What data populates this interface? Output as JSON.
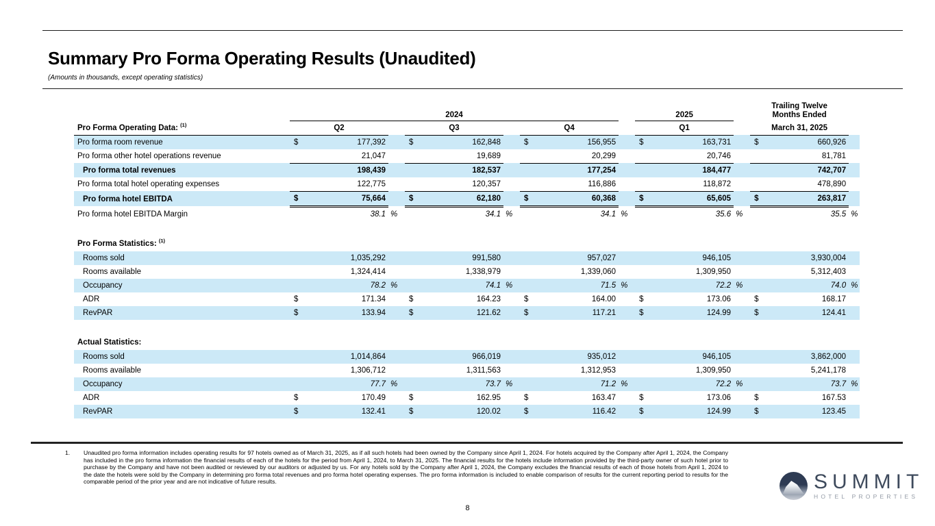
{
  "page": {
    "title": "Summary Pro Forma Operating Results (Unaudited)",
    "subtitle": "(Amounts in thousands, except operating statistics)",
    "page_number": "8"
  },
  "colors": {
    "row_highlight": "#cce9f7",
    "logo_navy": "#2e3b53",
    "logo_text_navy": "#3e4a5c",
    "logo_text_gray": "#939aa5"
  },
  "table": {
    "header": {
      "year_2024": "2024",
      "year_2025": "2025",
      "ttm_line1": "Trailing Twelve",
      "ttm_line2": "Months Ended",
      "label_heading": "Pro Forma Operating Data:",
      "label_heading_sup": "(1)",
      "quarter_labels": [
        "Q2",
        "Q3",
        "Q4",
        "Q1"
      ],
      "ttm_col_label": "March 31, 2025"
    },
    "sections": [
      {
        "heading": null,
        "heading_sup": "",
        "rows": [
          {
            "label": "Pro forma room revenue",
            "indent": 0,
            "bold": false,
            "italic": false,
            "shaded": true,
            "unit": "dollar",
            "bottom_border": "none",
            "values": [
              "177,392",
              "162,848",
              "156,955",
              "163,731",
              "660,926"
            ]
          },
          {
            "label": "Pro forma other hotel operations revenue",
            "indent": 0,
            "bold": false,
            "italic": false,
            "shaded": false,
            "unit": "none",
            "bottom_border": "single",
            "values": [
              "21,047",
              "19,689",
              "20,299",
              "20,746",
              "81,781"
            ]
          },
          {
            "label": "Pro forma total revenues",
            "indent": 1,
            "bold": true,
            "italic": false,
            "shaded": true,
            "unit": "none",
            "bottom_border": "none",
            "values": [
              "198,439",
              "182,537",
              "177,254",
              "184,477",
              "742,707"
            ]
          },
          {
            "label": "Pro forma total hotel operating expenses",
            "indent": 0,
            "bold": false,
            "italic": false,
            "shaded": false,
            "unit": "none",
            "bottom_border": "single",
            "values": [
              "122,775",
              "120,357",
              "116,886",
              "118,872",
              "478,890"
            ]
          },
          {
            "label": "Pro forma hotel EBITDA",
            "indent": 1,
            "bold": true,
            "italic": false,
            "shaded": true,
            "unit": "dollar",
            "bottom_border": "double",
            "values": [
              "75,664",
              "62,180",
              "60,368",
              "65,605",
              "263,817"
            ]
          },
          {
            "label": "Pro forma hotel EBITDA Margin",
            "indent": 0,
            "bold": false,
            "italic": true,
            "shaded": false,
            "unit": "percent",
            "bottom_border": "none",
            "values": [
              "38.1",
              "34.1",
              "34.1",
              "35.6",
              "35.5"
            ]
          }
        ]
      },
      {
        "heading": "Pro Forma Statistics:",
        "heading_sup": "(1)",
        "rows": [
          {
            "label": "Rooms sold",
            "indent": 1,
            "bold": false,
            "italic": false,
            "shaded": true,
            "unit": "none",
            "bottom_border": "none",
            "values": [
              "1,035,292",
              "991,580",
              "957,027",
              "946,105",
              "3,930,004"
            ]
          },
          {
            "label": "Rooms available",
            "indent": 1,
            "bold": false,
            "italic": false,
            "shaded": false,
            "unit": "none",
            "bottom_border": "none",
            "values": [
              "1,324,414",
              "1,338,979",
              "1,339,060",
              "1,309,950",
              "5,312,403"
            ]
          },
          {
            "label": "Occupancy",
            "indent": 1,
            "bold": false,
            "italic": true,
            "shaded": true,
            "unit": "percent",
            "bottom_border": "none",
            "values": [
              "78.2",
              "74.1",
              "71.5",
              "72.2",
              "74.0"
            ]
          },
          {
            "label": "ADR",
            "indent": 1,
            "bold": false,
            "italic": false,
            "shaded": false,
            "unit": "dollar",
            "bottom_border": "none",
            "values": [
              "171.34",
              "164.23",
              "164.00",
              "173.06",
              "168.17"
            ]
          },
          {
            "label": "RevPAR",
            "indent": 1,
            "bold": false,
            "italic": false,
            "shaded": true,
            "unit": "dollar",
            "bottom_border": "none",
            "values": [
              "133.94",
              "121.62",
              "117.21",
              "124.99",
              "124.41"
            ]
          }
        ]
      },
      {
        "heading": "Actual Statistics:",
        "heading_sup": "",
        "rows": [
          {
            "label": "Rooms sold",
            "indent": 1,
            "bold": false,
            "italic": false,
            "shaded": true,
            "unit": "none",
            "bottom_border": "none",
            "values": [
              "1,014,864",
              "966,019",
              "935,012",
              "946,105",
              "3,862,000"
            ]
          },
          {
            "label": "Rooms available",
            "indent": 1,
            "bold": false,
            "italic": false,
            "shaded": false,
            "unit": "none",
            "bottom_border": "none",
            "values": [
              "1,306,712",
              "1,311,563",
              "1,312,953",
              "1,309,950",
              "5,241,178"
            ]
          },
          {
            "label": "Occupancy",
            "indent": 1,
            "bold": false,
            "italic": true,
            "shaded": true,
            "unit": "percent",
            "bottom_border": "none",
            "values": [
              "77.7",
              "73.7",
              "71.2",
              "72.2",
              "73.7"
            ]
          },
          {
            "label": "ADR",
            "indent": 1,
            "bold": false,
            "italic": false,
            "shaded": false,
            "unit": "dollar",
            "bottom_border": "none",
            "values": [
              "170.49",
              "162.95",
              "163.47",
              "173.06",
              "167.53"
            ]
          },
          {
            "label": "RevPAR",
            "indent": 1,
            "bold": false,
            "italic": false,
            "shaded": true,
            "unit": "dollar",
            "bottom_border": "none",
            "values": [
              "132.41",
              "120.02",
              "116.42",
              "124.99",
              "123.45"
            ]
          }
        ]
      }
    ]
  },
  "footnote": {
    "number": "1.",
    "text": "Unaudited pro forma information includes operating results for 97 hotels owned as of March 31, 2025, as if all such hotels had been owned by the Company since April 1, 2024. For hotels acquired by the Company after April 1, 2024, the Company has included in the pro forma information the financial results of each of the hotels for the period from April 1, 2024, to March 31, 2025. The financial results for the hotels include information provided by the third-party owner of such hotel prior to purchase by the Company and have not been audited or reviewed by our auditors or adjusted by us. For any hotels sold by the Company after April 1, 2024, the Company excludes the financial results of each of those hotels from April 1, 2024 to the date the hotels were sold by the Company in determining pro forma total revenues and pro forma hotel operating expenses. The pro forma information is included to enable comparison of results for the current reporting period to results for the comparable period of the prior year and are not indicative of future results."
  },
  "logo": {
    "name": "SUMMIT",
    "subtitle": "HOTEL PROPERTIES"
  }
}
